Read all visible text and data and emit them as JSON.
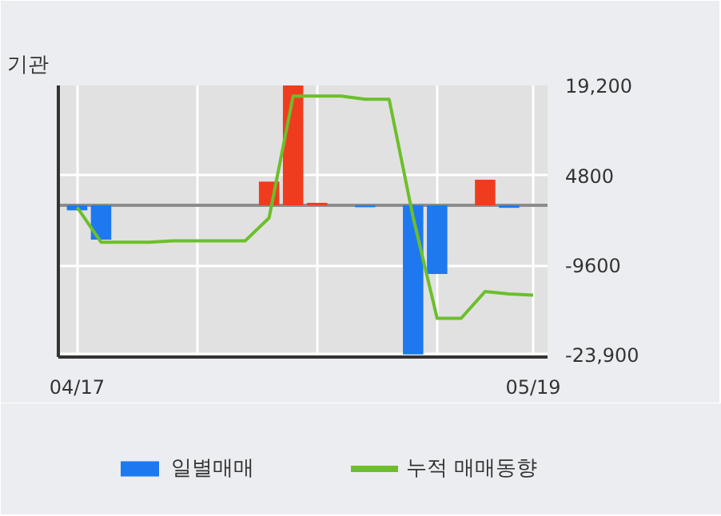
{
  "chart_data": {
    "type": "bar",
    "title": "기관",
    "categories": [
      "04/17",
      null,
      null,
      null,
      null,
      null,
      null,
      null,
      null,
      null,
      null,
      null,
      null,
      null,
      null,
      null,
      null,
      null,
      null,
      "05/19"
    ],
    "series": [
      {
        "name": "일별매매",
        "values": [
          -800,
          -5500,
          null,
          null,
          null,
          null,
          null,
          null,
          3800,
          19200,
          400,
          null,
          -300,
          null,
          -23900,
          -11000,
          null,
          4100,
          -400,
          null
        ],
        "colors": [
          "#1e78f0",
          "#1e78f0",
          null,
          null,
          null,
          null,
          null,
          null,
          "#f03c1e",
          "#f03c1e",
          "#f03c1e",
          null,
          "#1e78f0",
          null,
          "#1e78f0",
          "#1e78f0",
          null,
          "#f03c1e",
          "#1e78f0",
          null
        ]
      },
      {
        "name": "누적 매매동향",
        "type": "line",
        "color": "#6cbf2a",
        "values": [
          -300,
          -5900,
          -5900,
          -5900,
          -5700,
          -5700,
          -5700,
          -5700,
          -2000,
          17500,
          17500,
          17500,
          17000,
          17000,
          -1900,
          -18100,
          -18100,
          -13800,
          -14200,
          -14400
        ]
      }
    ],
    "ylim": [
      -24300,
      19200
    ],
    "yticks": [
      {
        "value": 19200,
        "label": "19,200"
      },
      4800,
      -9600,
      {
        "value": -23900,
        "label": "-23,900"
      }
    ],
    "ref_lines": [
      {
        "axis": "y",
        "value": 0,
        "color": "#8c8c8c"
      }
    ],
    "grid": true,
    "legend": "bottom",
    "marker": "none",
    "line_style": "solid"
  }
}
